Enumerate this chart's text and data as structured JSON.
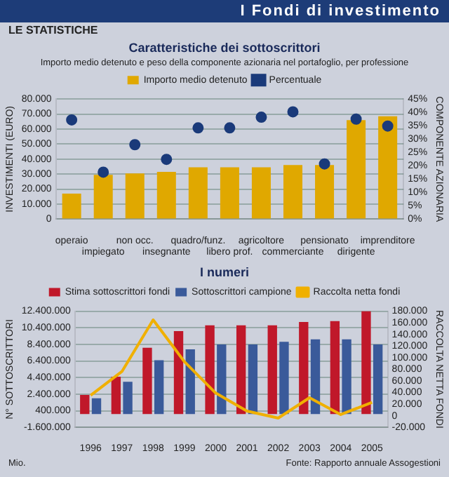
{
  "chart_data": [
    {
      "type": "bar",
      "title": "Caratteristiche dei sottoscrittori",
      "subtitle": "Importo medio detenuto e peso della componente azionaria nel portafoglio, per professione",
      "ylabel": "INVESTIMENTI (EURO)",
      "y2label": "COMPONENTE AZIONARIA",
      "annotations": [
        "I Fondi di investimento",
        "LE STATISTICHE"
      ],
      "categories": [
        "operaio",
        "impiegato",
        "non occ.",
        "insegnante",
        "quadro/funz.",
        "libero prof.",
        "agricoltore",
        "commerciante",
        "pensionato",
        "dirigente",
        "imprenditore"
      ],
      "series": [
        {
          "name": "Importo medio detenuto",
          "color": "#e0a800",
          "values": [
            17000,
            29500,
            30500,
            31500,
            34500,
            34500,
            34500,
            36000,
            36000,
            66000,
            68500
          ]
        },
        {
          "name": "Percentuale",
          "type": "scatter",
          "axis": "y2",
          "color": "#1a3a7a",
          "marker": "circle",
          "x": [
            "operaio",
            "impiegato",
            "non occ.",
            "insegnante",
            "quadro/funz.",
            "libero prof.",
            "agricoltore",
            "commerciante",
            "pensionato",
            "dirigente",
            "imprenditore"
          ],
          "values": [
            37.2,
            17.6,
            27.9,
            22.4,
            34.2,
            34.2,
            38.2,
            40.2,
            20.7,
            37.5,
            34.9
          ]
        }
      ],
      "ylim": [
        0,
        80000
      ],
      "yticks": [
        {
          "value": 0,
          "label": "0"
        },
        {
          "value": 10000,
          "label": "10.000"
        },
        {
          "value": 20000,
          "label": "20.000"
        },
        {
          "value": 30000,
          "label": "30.000"
        },
        {
          "value": 40000,
          "label": "40.000"
        },
        {
          "value": 50000,
          "label": "50.000"
        },
        {
          "value": 60000,
          "label": "60.000"
        },
        {
          "value": 70000,
          "label": "70.000"
        },
        {
          "value": 80000,
          "label": "80.000"
        }
      ],
      "y2lim": [
        0,
        45
      ],
      "y2ticks": [
        {
          "value": 0,
          "label": "0%"
        },
        {
          "value": 5,
          "label": "5%"
        },
        {
          "value": 10,
          "label": "10%"
        },
        {
          "value": 15,
          "label": "15%"
        },
        {
          "value": 20,
          "label": "20%"
        },
        {
          "value": 25,
          "label": "25%"
        },
        {
          "value": 30,
          "label": "30%"
        },
        {
          "value": 35,
          "label": "35%"
        },
        {
          "value": 40,
          "label": "40%"
        },
        {
          "value": 45,
          "label": "45%"
        }
      ],
      "grid": "y",
      "legend": "top"
    },
    {
      "type": "bar",
      "title": "I numeri",
      "ylabel": "N° SOTTOSCRITTORI",
      "y2label": "RACCOLTA NETTA FONDI",
      "annotations": [
        "Mio.",
        "Fonte: Rapporto annuale Assogestioni"
      ],
      "categories": [
        "1996",
        "1997",
        "1998",
        "1999",
        "2000",
        "2001",
        "2002",
        "2003",
        "2004",
        "2005"
      ],
      "series": [
        {
          "name": "Stima sottoscrittori fondi",
          "color": "#c0182a",
          "values": [
            2300000,
            4500000,
            8000000,
            10000000,
            10700000,
            10700000,
            10700000,
            11100000,
            11200000,
            12400000
          ]
        },
        {
          "name": "Sottoscrittori campione",
          "color": "#3a5a9a",
          "values": [
            1900000,
            3900000,
            6500000,
            7800000,
            8400000,
            8400000,
            8700000,
            9000000,
            9000000,
            8400000
          ]
        },
        {
          "name": "Raccolta netta fondi",
          "type": "line",
          "axis": "y2",
          "color": "#f0b000",
          "values": [
            35000,
            76000,
            165000,
            93000,
            39000,
            8000,
            -4000,
            31000,
            2000,
            23000
          ]
        }
      ],
      "ylim": [
        -1600000,
        12400000
      ],
      "yticks": [
        {
          "value": -1600000,
          "label": "-1.600.000"
        },
        {
          "value": 400000,
          "label": "400.000"
        },
        {
          "value": 2400000,
          "label": "2.400.000"
        },
        {
          "value": 4400000,
          "label": "4.400.000"
        },
        {
          "value": 6400000,
          "label": "6.400.000"
        },
        {
          "value": 8400000,
          "label": "8.400.000"
        },
        {
          "value": 10400000,
          "label": "10.400.000"
        },
        {
          "value": 12400000,
          "label": "12.400.000"
        }
      ],
      "y2lim": [
        -20000,
        180000
      ],
      "y2ticks": [
        {
          "value": -20000,
          "label": "-20.000"
        },
        {
          "value": 0,
          "label": "0"
        },
        {
          "value": 20000,
          "label": "20.000"
        },
        {
          "value": 40000,
          "label": "40.000"
        },
        {
          "value": 60000,
          "label": "60.000"
        },
        {
          "value": 80000,
          "label": "80.000"
        },
        {
          "value": 100000,
          "label": "100.000"
        },
        {
          "value": 120000,
          "label": "120.000"
        },
        {
          "value": 140000,
          "label": "140.000"
        },
        {
          "value": 160000,
          "label": "160.000"
        },
        {
          "value": 180000,
          "label": "180.000"
        }
      ],
      "grid": "y",
      "legend": "top"
    }
  ]
}
